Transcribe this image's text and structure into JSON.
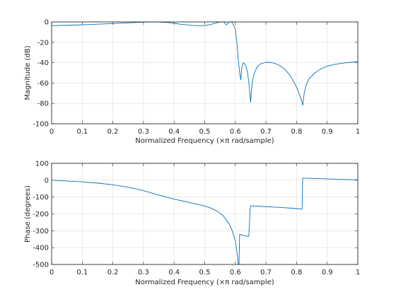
{
  "chart_data": [
    {
      "type": "line",
      "xlabel": "Normalized Frequency  (×π rad/sample)",
      "ylabel": "Magnitude (dB)",
      "xlim": [
        0,
        1
      ],
      "ylim": [
        -100,
        0
      ],
      "grid": true,
      "xticks": [
        0,
        0.1,
        0.2,
        0.3,
        0.4,
        0.5,
        0.6,
        0.7,
        0.8,
        0.9,
        1
      ],
      "xtick_labels": [
        "0",
        "0.1",
        "0.2",
        "0.3",
        "0.4",
        "0.5",
        "0.6",
        "0.7",
        "0.8",
        "0.9",
        "1"
      ],
      "yticks": [
        -100,
        -80,
        -60,
        -40,
        -20,
        0
      ],
      "ytick_labels": [
        "-100",
        "-80",
        "-60",
        "-40",
        "-20",
        "0"
      ],
      "series": [
        {
          "color": "#0072bd",
          "x": [
            0,
            0.05,
            0.1,
            0.15,
            0.2,
            0.25,
            0.28,
            0.3,
            0.32,
            0.35,
            0.38,
            0.4,
            0.42,
            0.45,
            0.48,
            0.5,
            0.52,
            0.54,
            0.55,
            0.56,
            0.565,
            0.57,
            0.575,
            0.58,
            0.59,
            0.6,
            0.605,
            0.61,
            0.615,
            0.618,
            0.62,
            0.623,
            0.627,
            0.63,
            0.635,
            0.64,
            0.645,
            0.648,
            0.65,
            0.652,
            0.655,
            0.66,
            0.67,
            0.68,
            0.7,
            0.72,
            0.74,
            0.76,
            0.78,
            0.8,
            0.81,
            0.815,
            0.818,
            0.82,
            0.822,
            0.825,
            0.83,
            0.84,
            0.86,
            0.88,
            0.9,
            0.92,
            0.95,
            0.98,
            1
          ],
          "y": [
            -3.7,
            -3.3,
            -2.8,
            -2.2,
            -1.6,
            -0.9,
            -0.5,
            -0.2,
            -0.1,
            -0.1,
            -0.6,
            -1.3,
            -2.2,
            -3.2,
            -3.8,
            -3.6,
            -2.5,
            -0.7,
            0,
            0.4,
            -0.8,
            -2.8,
            -1.8,
            0,
            -0.3,
            -7,
            -20,
            -38,
            -52,
            -57,
            -48,
            -42,
            -40,
            -41,
            -44,
            -50,
            -62,
            -72,
            -79,
            -70,
            -60,
            -52,
            -45,
            -41.5,
            -39.5,
            -40,
            -42,
            -46,
            -53,
            -64,
            -72,
            -76,
            -79,
            -82,
            -77,
            -70,
            -63,
            -56,
            -50,
            -46,
            -43.5,
            -42,
            -40.5,
            -39.5,
            -39
          ]
        }
      ]
    },
    {
      "type": "line",
      "xlabel": "Normalized Frequency  (×π rad/sample)",
      "ylabel": "Phase (degrees)",
      "xlim": [
        0,
        1
      ],
      "ylim": [
        -500,
        100
      ],
      "grid": true,
      "xticks": [
        0,
        0.1,
        0.2,
        0.3,
        0.4,
        0.5,
        0.6,
        0.7,
        0.8,
        0.9,
        1
      ],
      "xtick_labels": [
        "0",
        "0.1",
        "0.2",
        "0.3",
        "0.4",
        "0.5",
        "0.6",
        "0.7",
        "0.8",
        "0.9",
        "1"
      ],
      "yticks": [
        -500,
        -400,
        -300,
        -200,
        -100,
        0,
        100
      ],
      "ytick_labels": [
        "-500",
        "-400",
        "-300",
        "-200",
        "-100",
        "0",
        "100"
      ],
      "series": [
        {
          "color": "#0072bd",
          "x": [
            0,
            0.05,
            0.1,
            0.15,
            0.2,
            0.25,
            0.3,
            0.35,
            0.4,
            0.45,
            0.5,
            0.52,
            0.54,
            0.56,
            0.58,
            0.59,
            0.595,
            0.6,
            0.605,
            0.61,
            0.612,
            0.614,
            0.616,
            0.62,
            0.63,
            0.64,
            0.644,
            0.646,
            0.648,
            0.65,
            0.7,
            0.75,
            0.8,
            0.818,
            0.82,
            0.822,
            0.9,
            0.95,
            1
          ],
          "y": [
            0,
            -5,
            -10,
            -17,
            -27,
            -42,
            -62,
            -88,
            -112,
            -132,
            -153,
            -165,
            -183,
            -210,
            -260,
            -300,
            -330,
            -360,
            -420,
            -500,
            -500,
            -320,
            -322,
            -325,
            -330,
            -332,
            -333,
            -260,
            -185,
            -152,
            -157,
            -162,
            -168,
            -172,
            12,
            12,
            8,
            5,
            2
          ]
        }
      ]
    }
  ]
}
